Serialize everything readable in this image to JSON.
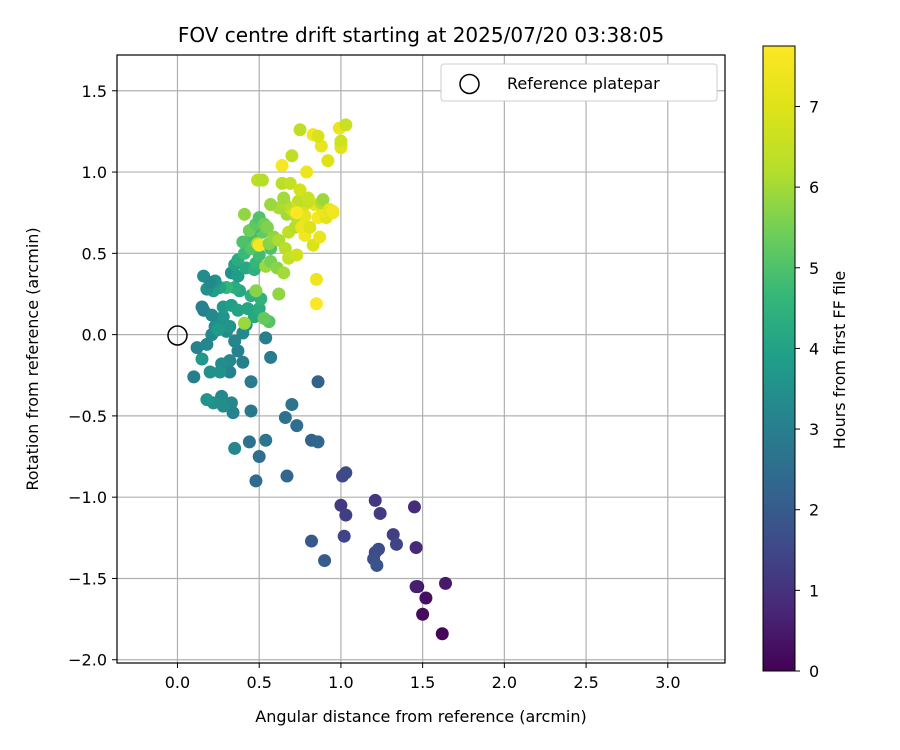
{
  "chart_data": {
    "type": "scatter",
    "title": "FOV centre drift starting at 2025/07/20 03:38:05",
    "xlabel": "Angular distance from reference (arcmin)",
    "ylabel": "Rotation from reference (arcmin)",
    "xlim": [
      -0.37,
      3.35
    ],
    "ylim": [
      -2.02,
      1.72
    ],
    "xticks": [
      "0.0",
      "0.5",
      "1.0",
      "1.5",
      "2.0",
      "2.5",
      "3.0"
    ],
    "yticks": [
      "−2.0",
      "−1.5",
      "−1.0",
      "−0.5",
      "0.0",
      "0.5",
      "1.0",
      "1.5"
    ],
    "grid": true,
    "legend": {
      "position": "top-right",
      "entries": [
        {
          "label": "Reference platepar",
          "marker": "open-circle",
          "x": 0.0,
          "y": 0.0
        }
      ]
    },
    "colorbar": {
      "label": "Hours from first FF file",
      "colormap": "viridis",
      "range": [
        0,
        7.75
      ],
      "ticks": [
        "0",
        "1",
        "2",
        "3",
        "4",
        "5",
        "6",
        "7"
      ]
    },
    "series": [
      {
        "color_by": "hours",
        "points": [
          [
            1.62,
            -1.84,
            0.1
          ],
          [
            1.5,
            -1.72,
            0.2
          ],
          [
            1.52,
            -1.62,
            0.3
          ],
          [
            1.47,
            -1.55,
            0.4
          ],
          [
            1.64,
            -1.53,
            0.5
          ],
          [
            1.46,
            -1.55,
            0.6
          ],
          [
            1.46,
            -1.31,
            0.8
          ],
          [
            1.45,
            -1.06,
            0.9
          ],
          [
            1.21,
            -1.02,
            1.1
          ],
          [
            1.24,
            -1.1,
            1.2
          ],
          [
            1.32,
            -1.23,
            1.3
          ],
          [
            1.34,
            -1.29,
            1.4
          ],
          [
            1.21,
            -1.34,
            1.5
          ],
          [
            1.23,
            -1.32,
            1.6
          ],
          [
            1.2,
            -1.38,
            1.7
          ],
          [
            1.22,
            -1.42,
            1.8
          ],
          [
            1.0,
            -1.05,
            1.2
          ],
          [
            1.03,
            -1.11,
            1.3
          ],
          [
            1.02,
            -1.24,
            1.4
          ],
          [
            1.01,
            -0.87,
            1.5
          ],
          [
            1.03,
            -0.85,
            1.6
          ],
          [
            0.82,
            -1.27,
            1.9
          ],
          [
            0.9,
            -1.39,
            2.0
          ],
          [
            0.67,
            -0.87,
            2.3
          ],
          [
            0.48,
            -0.9,
            2.4
          ],
          [
            0.5,
            -0.75,
            2.5
          ],
          [
            0.44,
            -0.66,
            2.6
          ],
          [
            0.54,
            -0.65,
            2.7
          ],
          [
            0.35,
            -0.7,
            3.2
          ],
          [
            0.82,
            -0.65,
            2.2
          ],
          [
            0.86,
            -0.66,
            2.3
          ],
          [
            0.73,
            -0.56,
            2.5
          ],
          [
            0.66,
            -0.51,
            2.6
          ],
          [
            0.7,
            -0.43,
            2.7
          ],
          [
            0.45,
            -0.47,
            2.8
          ],
          [
            0.86,
            -0.29,
            2.2
          ],
          [
            0.45,
            -0.29,
            2.9
          ],
          [
            0.57,
            -0.14,
            2.9
          ],
          [
            0.54,
            -0.02,
            3.0
          ],
          [
            0.34,
            -0.48,
            3.1
          ],
          [
            0.33,
            -0.42,
            3.2
          ],
          [
            0.27,
            -0.38,
            3.3
          ],
          [
            0.28,
            -0.44,
            3.4
          ],
          [
            0.22,
            -0.42,
            3.5
          ],
          [
            0.18,
            -0.4,
            3.6
          ],
          [
            0.1,
            -0.26,
            3.0
          ],
          [
            0.32,
            -0.23,
            3.1
          ],
          [
            0.4,
            -0.17,
            3.0
          ],
          [
            0.37,
            -0.1,
            3.1
          ],
          [
            0.35,
            -0.04,
            3.2
          ],
          [
            0.32,
            -0.16,
            3.3
          ],
          [
            0.27,
            -0.18,
            3.4
          ],
          [
            0.26,
            -0.23,
            3.5
          ],
          [
            0.2,
            -0.23,
            3.5
          ],
          [
            0.15,
            -0.15,
            3.7
          ],
          [
            0.12,
            -0.08,
            3.1
          ],
          [
            0.18,
            -0.06,
            3.2
          ],
          [
            0.21,
            0.0,
            3.3
          ],
          [
            0.23,
            0.05,
            3.4
          ],
          [
            0.25,
            0.08,
            3.5
          ],
          [
            0.28,
            0.11,
            3.6
          ],
          [
            0.3,
            0.02,
            3.4
          ],
          [
            0.32,
            0.05,
            3.6
          ],
          [
            0.4,
            0.01,
            3.3
          ],
          [
            0.42,
            0.06,
            3.5
          ],
          [
            0.16,
            0.15,
            3.0
          ],
          [
            0.15,
            0.17,
            3.1
          ],
          [
            0.21,
            0.12,
            3.3
          ],
          [
            0.25,
            0.03,
            3.8
          ],
          [
            0.28,
            0.17,
            3.7
          ],
          [
            0.33,
            0.18,
            3.9
          ],
          [
            0.37,
            0.15,
            4.0
          ],
          [
            0.43,
            0.16,
            4.1
          ],
          [
            0.47,
            0.11,
            4.2
          ],
          [
            0.5,
            0.16,
            4.3
          ],
          [
            0.51,
            0.22,
            4.5
          ],
          [
            0.45,
            0.24,
            4.4
          ],
          [
            0.38,
            0.27,
            4.2
          ],
          [
            0.35,
            0.29,
            4.3
          ],
          [
            0.3,
            0.29,
            4.6
          ],
          [
            0.26,
            0.29,
            4.1
          ],
          [
            0.22,
            0.27,
            3.9
          ],
          [
            0.18,
            0.28,
            3.5
          ],
          [
            0.23,
            0.33,
            3.6
          ],
          [
            0.16,
            0.36,
            3.4
          ],
          [
            0.2,
            0.32,
            3.3
          ],
          [
            0.33,
            0.38,
            3.5
          ],
          [
            0.37,
            0.36,
            3.9
          ],
          [
            0.42,
            0.41,
            4.2
          ],
          [
            0.47,
            0.4,
            4.4
          ],
          [
            0.35,
            0.43,
            4.0
          ],
          [
            0.37,
            0.46,
            4.3
          ],
          [
            0.48,
            0.44,
            4.6
          ],
          [
            0.5,
            0.49,
            4.8
          ],
          [
            0.57,
            0.53,
            5.0
          ],
          [
            0.41,
            0.5,
            4.7
          ],
          [
            0.45,
            0.53,
            5.1
          ],
          [
            0.44,
            0.58,
            5.2
          ],
          [
            0.4,
            0.57,
            5.0
          ],
          [
            0.47,
            0.6,
            4.9
          ],
          [
            0.52,
            0.63,
            5.3
          ],
          [
            0.47,
            0.66,
            4.8
          ],
          [
            0.44,
            0.64,
            5.4
          ],
          [
            0.48,
            0.68,
            5.2
          ],
          [
            0.5,
            0.72,
            5.0
          ],
          [
            0.53,
            0.68,
            5.4
          ],
          [
            0.55,
            0.66,
            5.6
          ],
          [
            0.41,
            0.74,
            5.8
          ],
          [
            0.49,
            0.56,
            6.2
          ],
          [
            0.5,
            0.55,
            7.6
          ],
          [
            0.54,
            0.42,
            5.9
          ],
          [
            0.57,
            0.45,
            5.5
          ],
          [
            0.61,
            0.41,
            5.7
          ],
          [
            0.65,
            0.38,
            6.0
          ],
          [
            0.62,
            0.25,
            5.8
          ],
          [
            0.56,
            0.08,
            5.1
          ],
          [
            0.53,
            0.1,
            5.3
          ],
          [
            0.48,
            0.27,
            5.7
          ],
          [
            0.41,
            0.07,
            5.9
          ],
          [
            0.56,
            0.56,
            5.7
          ],
          [
            0.59,
            0.6,
            5.8
          ],
          [
            0.62,
            0.58,
            6.1
          ],
          [
            0.66,
            0.53,
            6.3
          ],
          [
            0.68,
            0.47,
            6.5
          ],
          [
            0.73,
            0.49,
            6.7
          ],
          [
            0.68,
            0.63,
            6.4
          ],
          [
            0.72,
            0.66,
            6.2
          ],
          [
            0.67,
            0.74,
            6.0
          ],
          [
            0.73,
            0.72,
            6.3
          ],
          [
            0.71,
            0.76,
            6.6
          ],
          [
            0.77,
            0.79,
            6.8
          ],
          [
            0.78,
            0.73,
            7.2
          ],
          [
            0.76,
            0.66,
            7.4
          ],
          [
            0.78,
            0.61,
            7.5
          ],
          [
            0.81,
            0.66,
            7.0
          ],
          [
            0.83,
            0.55,
            6.9
          ],
          [
            0.86,
            0.72,
            7.6
          ],
          [
            0.87,
            0.6,
            7.3
          ],
          [
            0.91,
            0.72,
            7.1
          ],
          [
            0.89,
            0.76,
            7.4
          ],
          [
            0.84,
            0.8,
            7.2
          ],
          [
            0.8,
            0.82,
            6.5
          ],
          [
            0.74,
            0.82,
            6.4
          ],
          [
            0.69,
            0.78,
            6.7
          ],
          [
            0.66,
            0.8,
            6.3
          ],
          [
            0.62,
            0.78,
            6.1
          ],
          [
            0.57,
            0.8,
            5.9
          ],
          [
            0.65,
            0.84,
            6.0
          ],
          [
            0.73,
            0.75,
            7.7
          ],
          [
            0.88,
            0.81,
            6.2
          ],
          [
            0.89,
            0.83,
            5.9
          ],
          [
            0.95,
            0.75,
            7.3
          ],
          [
            0.93,
            0.77,
            7.2
          ],
          [
            0.95,
            0.76,
            7.5
          ],
          [
            0.85,
            0.34,
            7.4
          ],
          [
            0.85,
            0.19,
            7.7
          ],
          [
            0.64,
            0.93,
            6.3
          ],
          [
            0.69,
            0.93,
            6.5
          ],
          [
            0.75,
            0.89,
            6.8
          ],
          [
            0.8,
            0.84,
            6.6
          ],
          [
            0.49,
            0.95,
            6.4
          ],
          [
            0.52,
            0.95,
            6.2
          ],
          [
            0.7,
            1.1,
            6.4
          ],
          [
            0.64,
            1.04,
            7.6
          ],
          [
            0.79,
            1.0,
            7.4
          ],
          [
            0.88,
            1.16,
            7.3
          ],
          [
            0.92,
            1.07,
            7.0
          ],
          [
            0.83,
            1.23,
            7.5
          ],
          [
            0.86,
            1.22,
            6.9
          ],
          [
            1.0,
            1.17,
            6.8
          ],
          [
            1.0,
            1.15,
            7.1
          ],
          [
            1.0,
            1.19,
            6.7
          ],
          [
            0.75,
            1.26,
            6.4
          ],
          [
            0.99,
            1.27,
            7.3
          ],
          [
            1.03,
            1.29,
            6.6
          ]
        ]
      }
    ]
  }
}
